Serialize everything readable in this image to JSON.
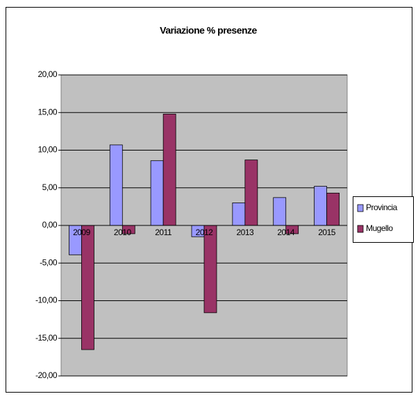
{
  "chart_data": {
    "type": "bar",
    "title": "Variazione % presenze",
    "categories": [
      "2009",
      "2010",
      "2011",
      "2012",
      "2013",
      "2014",
      "2015"
    ],
    "series": [
      {
        "name": "Provincia",
        "color": "#9999ff",
        "values": [
          -3.9,
          10.7,
          8.6,
          -1.5,
          3.0,
          3.7,
          5.2
        ]
      },
      {
        "name": "Mugello",
        "color": "#993366",
        "values": [
          -16.5,
          -1.1,
          14.8,
          -11.6,
          8.7,
          -1.1,
          4.3
        ]
      }
    ],
    "ylim": [
      -20,
      20
    ],
    "yticks": [
      {
        "value": -20,
        "label": "-20,00"
      },
      {
        "value": -15,
        "label": "-15,00"
      },
      {
        "value": -10,
        "label": "-10,00"
      },
      {
        "value": -5,
        "label": "-5,00"
      },
      {
        "value": 0,
        "label": "0,00"
      },
      {
        "value": 5,
        "label": "5,00"
      },
      {
        "value": 10,
        "label": "10,00"
      },
      {
        "value": 15,
        "label": "15,00"
      },
      {
        "value": 20,
        "label": "20,00"
      }
    ],
    "grid": true,
    "legend": "right"
  }
}
